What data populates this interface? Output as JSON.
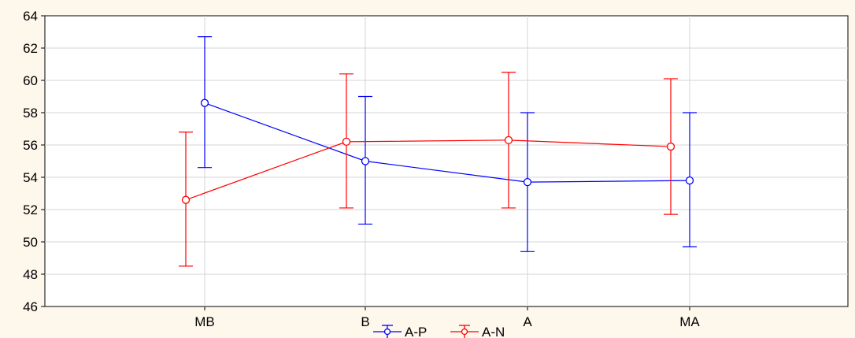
{
  "chart_data": {
    "type": "line",
    "title": "",
    "xlabel": "",
    "ylabel": "",
    "categories": [
      "MB",
      "B",
      "A",
      "MA"
    ],
    "ylim": [
      46,
      64
    ],
    "yticks": [
      46,
      48,
      50,
      52,
      54,
      56,
      58,
      60,
      62,
      64
    ],
    "grid": true,
    "legend_position": "bottom",
    "series": [
      {
        "name": "A-P",
        "color": "#0000ff",
        "values": [
          58.6,
          55.0,
          53.7,
          53.8
        ],
        "lower": [
          54.6,
          51.1,
          49.4,
          49.7
        ],
        "upper": [
          62.7,
          59.0,
          58.0,
          58.0
        ]
      },
      {
        "name": "A-N",
        "color": "#ff0000",
        "values": [
          52.6,
          56.2,
          56.3,
          55.9
        ],
        "lower": [
          48.5,
          52.1,
          52.1,
          51.7
        ],
        "upper": [
          56.8,
          60.4,
          60.5,
          60.1
        ]
      }
    ]
  }
}
